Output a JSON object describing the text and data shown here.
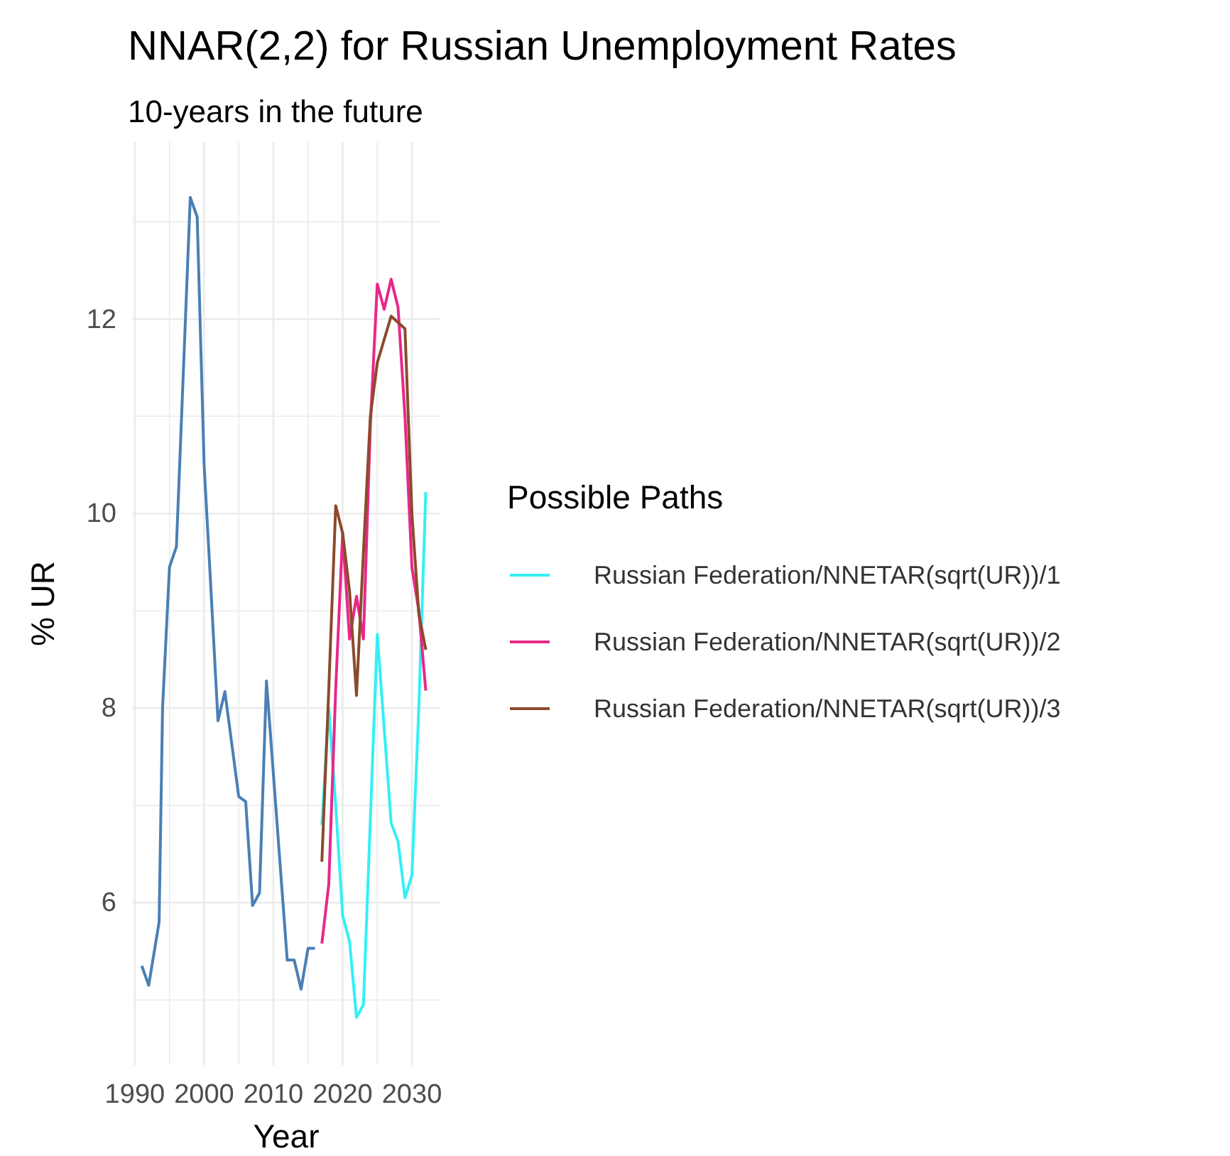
{
  "chart_data": {
    "type": "line",
    "title": "NNAR(2,2) for Russian Unemployment Rates",
    "subtitle": "10-years in the future",
    "xlabel": "Year",
    "ylabel": "% UR",
    "legend_title": "Possible Paths",
    "legend": "right",
    "grid": true,
    "xlim": [
      1989.6,
      2034.1
    ],
    "xticks": [
      1990,
      {
        "value": 1995,
        "label": null
      },
      2000,
      {
        "value": 2005,
        "label": null
      },
      2010,
      {
        "value": 2015,
        "label": null
      },
      2020,
      {
        "value": 2025,
        "label": null
      },
      2030
    ],
    "ylim": [
      4.33,
      13.82
    ],
    "yticks": [
      {
        "value": 5,
        "label": null
      },
      6,
      {
        "value": 7,
        "label": null
      },
      8,
      {
        "value": 9,
        "label": null
      },
      10,
      {
        "value": 11,
        "label": null
      },
      12,
      {
        "value": 13,
        "label": null
      }
    ],
    "series": [
      {
        "color": "#4a7fb5",
        "x": [
          1991,
          1992,
          1993.5,
          1994,
          1995,
          1996,
          1998,
          1999,
          2000,
          2001,
          2002,
          2003,
          2005,
          2006,
          2007,
          2008,
          2009,
          2012,
          2013,
          2014,
          2015,
          2016
        ],
        "values": [
          5.35,
          5.15,
          5.8,
          8.0,
          9.45,
          9.66,
          13.25,
          13.05,
          10.5,
          9.2,
          7.87,
          8.17,
          7.09,
          7.04,
          5.97,
          6.1,
          8.28,
          5.41,
          5.41,
          5.11,
          5.53,
          5.53
        ]
      },
      {
        "name": "Russian Federation/NNETAR(sqrt(UR))/1",
        "color": "#33f0f5",
        "x": [
          2017,
          2018,
          2019,
          2020,
          2021,
          2022,
          2023,
          2025,
          2027,
          2028,
          2029,
          2030,
          2031,
          2032
        ],
        "values": [
          6.8,
          8.0,
          7.0,
          5.87,
          5.6,
          4.82,
          4.95,
          8.76,
          6.82,
          6.63,
          6.05,
          6.28,
          8.0,
          10.22
        ]
      },
      {
        "name": "Russian Federation/NNETAR(sqrt(UR))/2",
        "color": "#e8288a",
        "x": [
          2017,
          2018,
          2019,
          2020,
          2021,
          2022,
          2023,
          2024,
          2025,
          2026,
          2027,
          2028,
          2029,
          2030,
          2031,
          2032
        ],
        "values": [
          5.58,
          6.19,
          8.2,
          9.8,
          8.71,
          9.15,
          8.71,
          10.9,
          12.36,
          12.1,
          12.41,
          12.12,
          11.0,
          9.45,
          9.0,
          8.18
        ]
      },
      {
        "name": "Russian Federation/NNETAR(sqrt(UR))/3",
        "color": "#8b4a2b",
        "x": [
          2017,
          2018,
          2019,
          2020,
          2021,
          2022,
          2023,
          2024,
          2025,
          2027,
          2029,
          2030,
          2031,
          2032
        ],
        "values": [
          6.42,
          8.2,
          10.08,
          9.8,
          9.2,
          8.13,
          9.6,
          11.0,
          11.55,
          12.03,
          11.9,
          10.0,
          8.97,
          8.6
        ]
      }
    ]
  }
}
